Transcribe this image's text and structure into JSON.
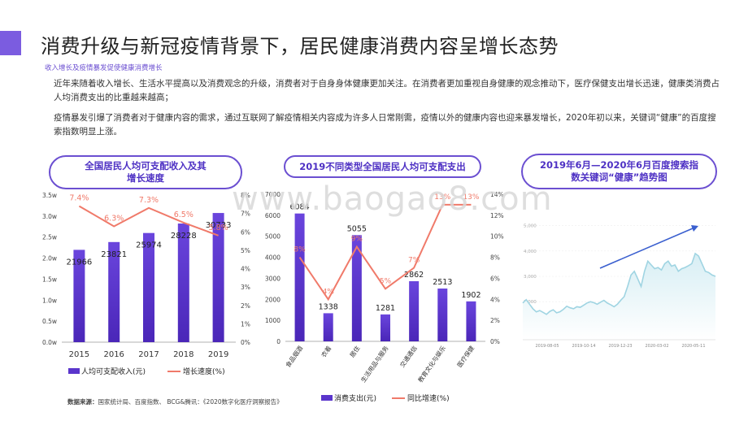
{
  "slide": {
    "title": "消费升级与新冠疫情背景下，居民健康消费内容呈增长态势",
    "subtitle": "收入增长及疫情暴发促使健康消费增长",
    "para1": "近年来随着收入增长、生活水平提高以及消费观念的升级，消费者对于自身身体健康更加关注。在消费者更加重视自身健康的观念推动下，医疗保健支出增长迅速，健康类消费占人均消费支出的比重越来越高；",
    "para2": "疫情暴发引爆了消费者对于健康内容的需求，通过互联网了解疫情相关内容成为许多人日常刚需，疫情以外的健康内容也迎来暴发增长，2020年初以来，关键词“健康”的百度搜索指数明显上涨。",
    "watermark": "www.baogao8.com",
    "source_label": "数据来源：",
    "source_text": "国家统计局、百度指数、 BCG&腾讯：《2020数字化医疗洞察报告》",
    "colors": {
      "accent": "#7b5ce0",
      "bar": "#5a35cc",
      "line": "#f07a6a",
      "trend": "#bfe3ec",
      "arrow": "#3a5fcf"
    }
  },
  "chart_data": [
    {
      "type": "bar",
      "title": "全国居民人均可支配收入及其增长速度",
      "categories": [
        "2015",
        "2016",
        "2017",
        "2018",
        "2019"
      ],
      "series": [
        {
          "name": "人均可支配收入(元)",
          "type": "bar",
          "values": [
            21966,
            23821,
            25974,
            28228,
            30733
          ],
          "labels": [
            "21966",
            "23821",
            "25974",
            "28228",
            "30733"
          ]
        },
        {
          "name": "增长速度(%)",
          "type": "line",
          "values": [
            7.4,
            6.3,
            7.3,
            6.5,
            5.8
          ],
          "labels": [
            "7.4%",
            "6.3%",
            "7.3%",
            "6.5%",
            "5.8%"
          ]
        }
      ],
      "y_left": {
        "min": 0,
        "max": 35000,
        "ticks": [
          "0.0w",
          "0.5w",
          "1.0w",
          "1.5w",
          "2.0w",
          "2.5w",
          "3.0w",
          "3.5w"
        ]
      },
      "y_right": {
        "min": 0,
        "max": 8,
        "ticks": [
          "0%",
          "1%",
          "2%",
          "3%",
          "4%",
          "5%",
          "6%",
          "7%",
          "8%"
        ]
      },
      "legend": "bottom"
    },
    {
      "type": "bar",
      "title": "2019不同类型全国居民人均可支配支出",
      "categories": [
        "食品烟酒",
        "衣着",
        "居住",
        "生活用品与服务",
        "交通通信",
        "教育文化与娱乐",
        "医疗保健"
      ],
      "series": [
        {
          "name": "消费支出(元)",
          "type": "bar",
          "values": [
            6084,
            1338,
            5055,
            1281,
            2862,
            2513,
            1902
          ],
          "labels": [
            "6084",
            "1338",
            "5055",
            "1281",
            "2862",
            "2513",
            "1902"
          ]
        },
        {
          "name": "同比增速(%)",
          "type": "line",
          "values": [
            8,
            4,
            9,
            5,
            7,
            13,
            13
          ],
          "labels": [
            "8%",
            "4%",
            "9%",
            "5%",
            "7%",
            "13%",
            "13%"
          ]
        }
      ],
      "y_left": {
        "min": 0,
        "max": 7000,
        "ticks": [
          "0",
          "1000",
          "2000",
          "3000",
          "4000",
          "5000",
          "6000",
          "7000"
        ]
      },
      "y_right": {
        "min": 0,
        "max": 14,
        "ticks": [
          "0%",
          "2%",
          "4%",
          "6%",
          "8%",
          "10%",
          "12%",
          "14%"
        ]
      },
      "legend": "bottom"
    },
    {
      "type": "area",
      "title": "2019年6月—2020年6月百度搜索指数关键词“健康”趋势图",
      "x_ticks": [
        "2019-08-05",
        "2019-10-14",
        "2019-12-23",
        "2020-03-02",
        "2020-05-11"
      ],
      "y_ticks": [
        "1,000",
        "2,000",
        "3,000",
        "4,000",
        "5,000"
      ],
      "y_range": [
        500,
        5500
      ],
      "values": [
        1950,
        2080,
        1900,
        1720,
        1600,
        1650,
        1580,
        1500,
        1620,
        1680,
        1560,
        1600,
        1700,
        1820,
        1760,
        1720,
        1800,
        1780,
        1860,
        1950,
        2000,
        1960,
        1900,
        1980,
        2050,
        1950,
        1880,
        1800,
        1900,
        2060,
        2200,
        2600,
        3050,
        3200,
        2900,
        2600,
        3200,
        3600,
        3450,
        3300,
        3350,
        3250,
        3500,
        3600,
        3400,
        3450,
        3200,
        3300,
        3350,
        3420,
        3500,
        3900,
        3800,
        3500,
        3200,
        3150,
        3050,
        3000
      ],
      "legend": "none"
    }
  ]
}
